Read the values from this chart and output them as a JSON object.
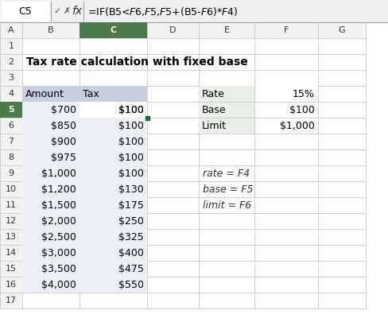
{
  "title": "Tax rate calculation with fixed base",
  "formula_bar_cell": "C5",
  "formula_bar_formula": "=IF(B5<$F$6,$F$5,$F$5+(B5-$F$6)*$F$4)",
  "col_headers": [
    "A",
    "B",
    "C",
    "D",
    "E",
    "F",
    "G"
  ],
  "row_headers": [
    "1",
    "2",
    "3",
    "4",
    "5",
    "6",
    "7",
    "8",
    "9",
    "10",
    "11",
    "12",
    "13",
    "14",
    "15",
    "16",
    "17"
  ],
  "main_table_header": [
    "Amount",
    "Tax"
  ],
  "main_table_data": [
    [
      "$700",
      "$100"
    ],
    [
      "$850",
      "$100"
    ],
    [
      "$900",
      "$100"
    ],
    [
      "$975",
      "$100"
    ],
    [
      "$1,000",
      "$100"
    ],
    [
      "$1,200",
      "$130"
    ],
    [
      "$1,500",
      "$175"
    ],
    [
      "$2,000",
      "$250"
    ],
    [
      "$2,500",
      "$325"
    ],
    [
      "$3,000",
      "$400"
    ],
    [
      "$3,500",
      "$475"
    ],
    [
      "$4,000",
      "$550"
    ]
  ],
  "side_table_header": [
    "Rate",
    "15%"
  ],
  "side_table_data": [
    [
      "Base",
      "$100"
    ],
    [
      "Limit",
      "$1,000"
    ]
  ],
  "notes": [
    "rate = F4",
    "base = F5",
    "limit = F6"
  ],
  "main_header_bg": "#c8cfe0",
  "main_cell_bg": "#eef0f8",
  "side_left_bg": "#e8f0e8",
  "side_right_bg": "#ffffff",
  "selected_cell_border": "#1a6b3a",
  "grid_color": "#c0c0c0",
  "bg_color": "#ffffff",
  "formula_bar_bg": "#f0f0f0",
  "header_row_bg": "#e8e8e8",
  "col_header_bg": "#f2f2f2"
}
